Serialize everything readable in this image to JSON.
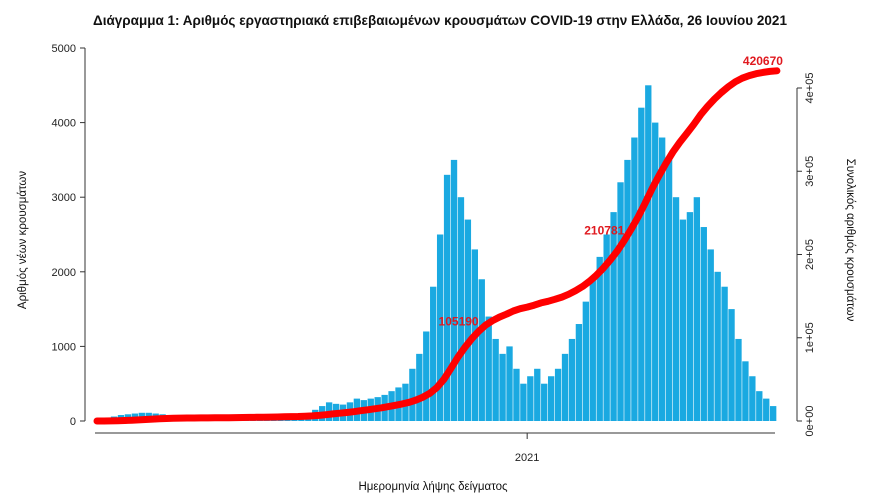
{
  "chart_data": {
    "type": "bar+line",
    "title": "Διάγραμμα 1: Αριθμός εργαστηριακά επιβεβαιωμένων κρουσμάτων COVID-19 στην Ελλάδα, 26 Ιουνίου 2021",
    "xlabel": "Ημερομηνία λήψης δείγματος",
    "ylabel_left": "Αριθμός νέων κρουσμάτων",
    "ylabel_right": "Συνολικός αριθμός κρουσμάτων",
    "x_ticks": [
      "2021"
    ],
    "y_left": {
      "lim": [
        0,
        5000
      ],
      "ticks": [
        "0",
        "1000",
        "2000",
        "3000",
        "4000",
        "5000"
      ]
    },
    "y_right": {
      "lim": [
        0,
        400000
      ],
      "ticks": [
        "0e+00",
        "1e+05",
        "2e+05",
        "3e+05",
        "4e+05"
      ]
    },
    "x_range": [
      "2020-02-26",
      "2021-06-25"
    ],
    "sample_interval_days": 5,
    "series": [
      {
        "name": "Αριθμός νέων κρουσμάτων",
        "type": "bar",
        "color": "#1aa9e1",
        "values": [
          5,
          20,
          60,
          80,
          90,
          100,
          110,
          110,
          100,
          90,
          70,
          50,
          30,
          20,
          15,
          15,
          20,
          20,
          25,
          20,
          25,
          30,
          30,
          35,
          40,
          40,
          45,
          50,
          60,
          80,
          100,
          150,
          200,
          250,
          230,
          220,
          250,
          300,
          280,
          300,
          320,
          350,
          400,
          450,
          500,
          700,
          900,
          1200,
          1800,
          2500,
          3300,
          3500,
          3000,
          2700,
          2300,
          1900,
          1400,
          1100,
          900,
          1000,
          700,
          500,
          600,
          700,
          500,
          600,
          700,
          900,
          1100,
          1300,
          1600,
          1900,
          2200,
          2500,
          2800,
          3200,
          3500,
          3800,
          4200,
          4500,
          4000,
          3800,
          3500,
          3000,
          2700,
          2800,
          3000,
          2600,
          2300,
          2000,
          1800,
          1500,
          1100,
          800,
          600,
          400,
          300,
          200
        ]
      },
      {
        "name": "Συνολικός αριθμός κρουσμάτων",
        "type": "line",
        "color": "#ff0000",
        "final_value": 420670
      }
    ],
    "annotations": [
      "105190",
      "210781",
      "420670"
    ],
    "annotation_values": [
      105190,
      210781,
      420670
    ]
  }
}
